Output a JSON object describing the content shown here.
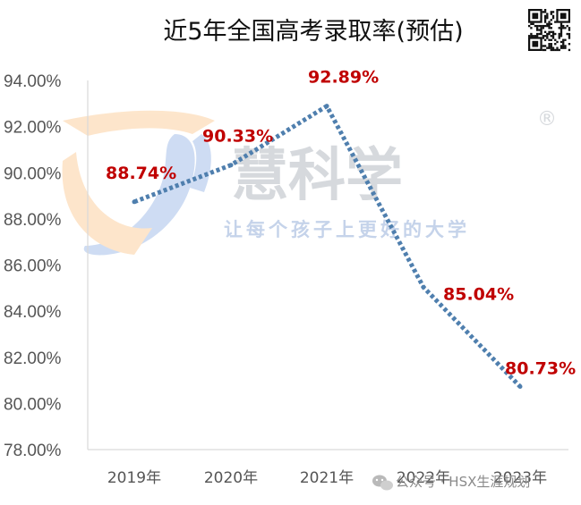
{
  "chart_data": {
    "type": "line",
    "title": "近5年全国高考录取率(预估)",
    "categories": [
      "2019年",
      "2020年",
      "2021年",
      "2022年",
      "2023年"
    ],
    "values": [
      88.74,
      90.33,
      92.89,
      85.04,
      80.73
    ],
    "data_labels": [
      "88.74%",
      "90.33%",
      "92.89%",
      "85.04%",
      "80.73%"
    ],
    "y_ticks": [
      "78.00%",
      "80.00%",
      "82.00%",
      "84.00%",
      "86.00%",
      "88.00%",
      "90.00%",
      "92.00%",
      "94.00%"
    ],
    "ylim": [
      78,
      94
    ],
    "grid": false,
    "line_color": "#4f7fae",
    "label_color": "#c00000"
  },
  "watermark": {
    "brand": "慧科学",
    "registered_mark": "®",
    "slogan": "让每个孩子上更好的大学",
    "logo_icon": "j-swoosh-logo-icon"
  },
  "header": {
    "qr_icon": "qr-code-icon"
  },
  "footer": {
    "wechat_icon": "wechat-icon",
    "account_text": "公众号 · HSX生涯规划"
  }
}
